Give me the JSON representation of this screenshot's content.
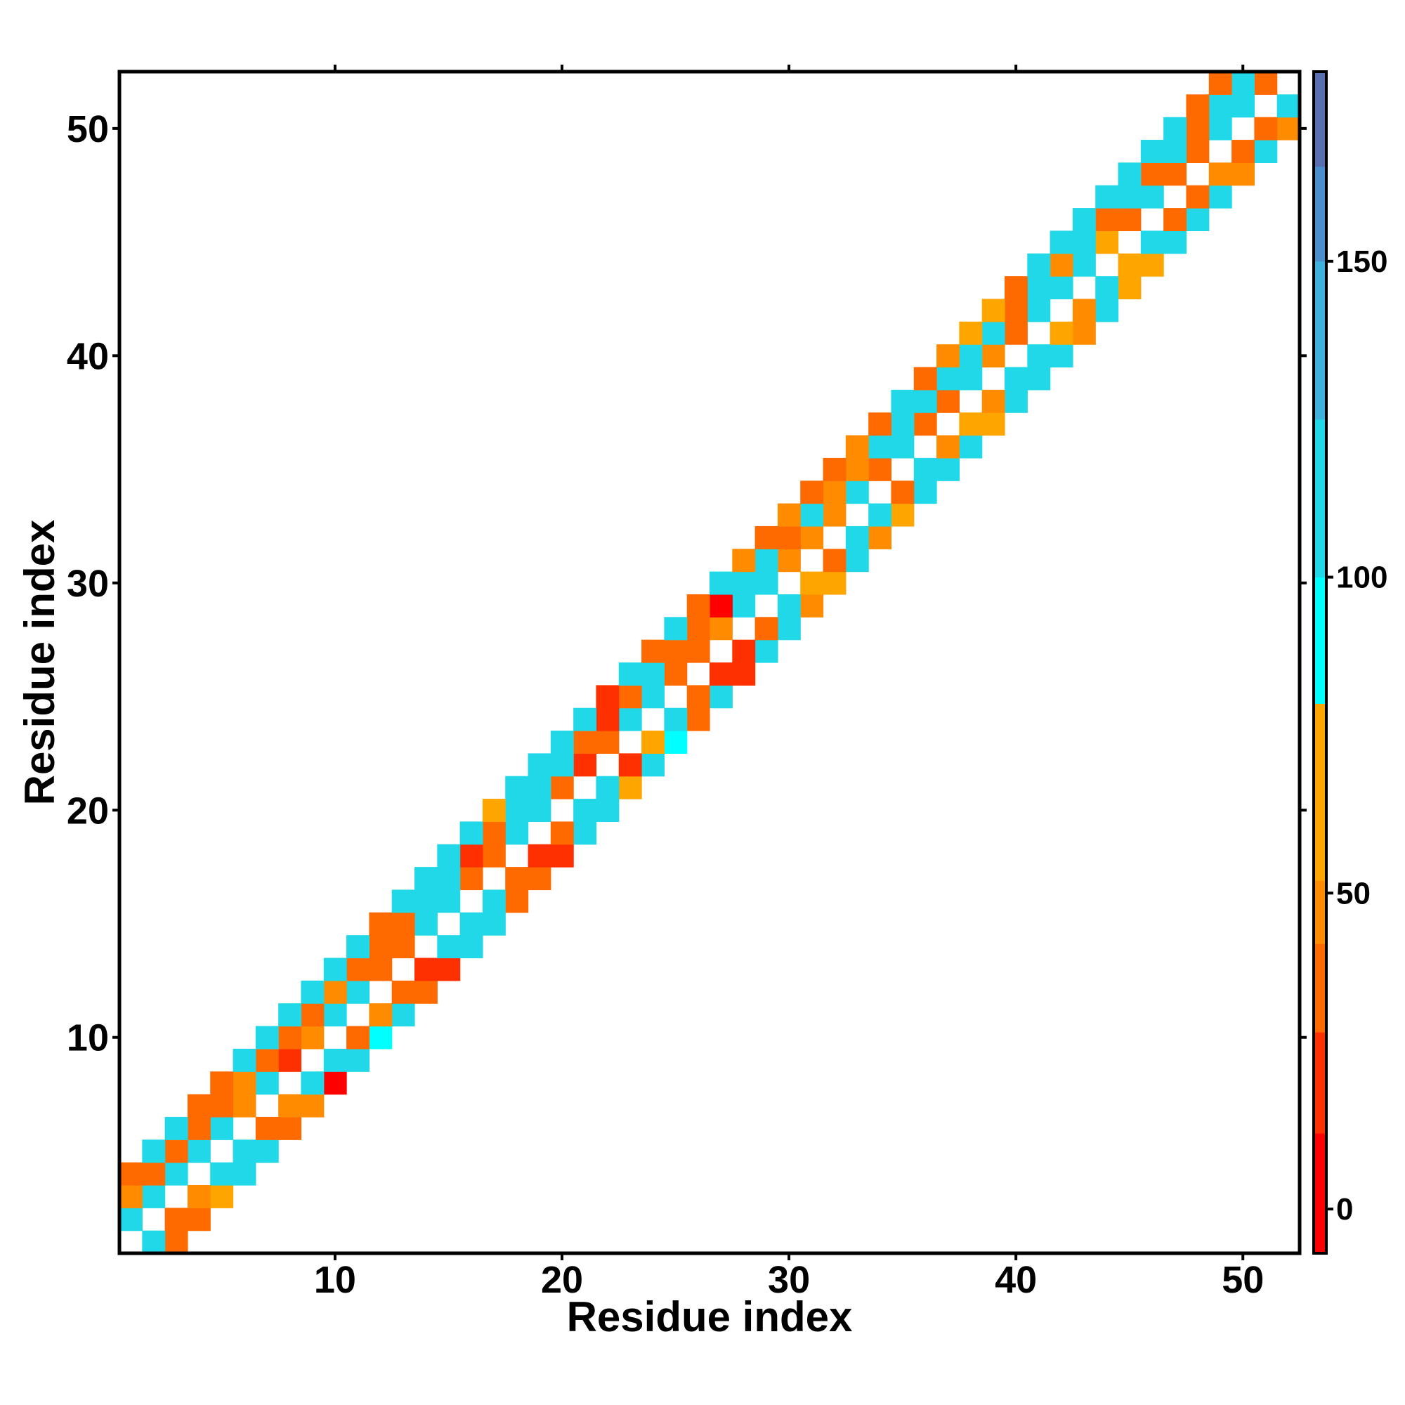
{
  "chart_data": {
    "type": "heatmap",
    "xlabel": "Residue index",
    "ylabel": "Residue index",
    "xlim": [
      0.5,
      52.5
    ],
    "ylim": [
      0.5,
      52.5
    ],
    "x_ticks": [
      10,
      20,
      30,
      40,
      50
    ],
    "y_ticks": [
      10,
      20,
      30,
      40,
      50
    ],
    "x_tick_labels": [
      "10",
      "20",
      "30",
      "40",
      "50"
    ],
    "y_tick_labels": [
      "10",
      "20",
      "30",
      "40",
      "50"
    ],
    "grid": false,
    "legend": "colorbar-right",
    "colorbar": {
      "range": [
        -7,
        180
      ],
      "ticks": [
        0,
        50,
        100,
        150
      ],
      "tick_labels": [
        "0",
        "50",
        "100",
        "150"
      ],
      "colors": [
        "#ff0000",
        "#ff3000",
        "#ff6a00",
        "#ff8c00",
        "#ffa500",
        "#00ffff",
        "#20d8e8",
        "#40b0dc",
        "#4a8fcc",
        "#5a6fb0",
        "#ffffff"
      ]
    },
    "diagonal_offsets": [
      -2,
      -1,
      1,
      2,
      3
    ],
    "values": {
      "d-2": [
        40,
        30,
        55,
        100,
        100,
        35,
        45,
        10,
        100,
        95,
        100,
        40,
        20,
        100,
        100,
        35,
        40,
        25,
        100,
        100,
        60,
        100,
        80,
        40,
        100,
        20,
        100,
        100,
        50,
        60,
        100,
        45,
        60,
        100,
        100,
        100,
        60,
        100,
        100,
        100,
        50,
        100,
        60,
        55,
        100,
        100,
        100,
        45,
        100,
        50
      ],
      "d-1": [
        100,
        35,
        45,
        100,
        100,
        35,
        45,
        100,
        100,
        30,
        45,
        30,
        25,
        100,
        100,
        100,
        30,
        20,
        35,
        100,
        100,
        20,
        60,
        100,
        35,
        20,
        20,
        40,
        100,
        55,
        40,
        100,
        100,
        40,
        100,
        45,
        60,
        45,
        100,
        100,
        65,
        50,
        100,
        60,
        100,
        35,
        40,
        45,
        40,
        35,
        100
      ],
      "d1": [
        100,
        100,
        100,
        100,
        100,
        45,
        100,
        20,
        45,
        100,
        100,
        30,
        35,
        100,
        100,
        40,
        40,
        100,
        100,
        40,
        15,
        35,
        100,
        100,
        40,
        40,
        45,
        100,
        100,
        45,
        45,
        45,
        100,
        40,
        100,
        40,
        40,
        100,
        45,
        40,
        100,
        100,
        100,
        55,
        40,
        100,
        40,
        40,
        100,
        100,
        40
      ],
      "d2": [
        50,
        35,
        40,
        40,
        35,
        45,
        35,
        40,
        40,
        45,
        35,
        35,
        40,
        100,
        100,
        25,
        40,
        100,
        100,
        100,
        40,
        25,
        40,
        100,
        30,
        40,
        5,
        100,
        100,
        40,
        100,
        45,
        45,
        100,
        100,
        100,
        100,
        100,
        100,
        40,
        100,
        45,
        100,
        40,
        100,
        40,
        100,
        40,
        100,
        100
      ],
      "d3": [
        40,
        100,
        100,
        35,
        40,
        100,
        100,
        100,
        100,
        100,
        100,
        35,
        100,
        100,
        100,
        100,
        55,
        100,
        100,
        100,
        100,
        25,
        100,
        35,
        100,
        40,
        100,
        45,
        40,
        50,
        40,
        40,
        45,
        40,
        100,
        40,
        50,
        60,
        55,
        40,
        100,
        100,
        100,
        100,
        100,
        100,
        100,
        40,
        40
      ]
    }
  }
}
